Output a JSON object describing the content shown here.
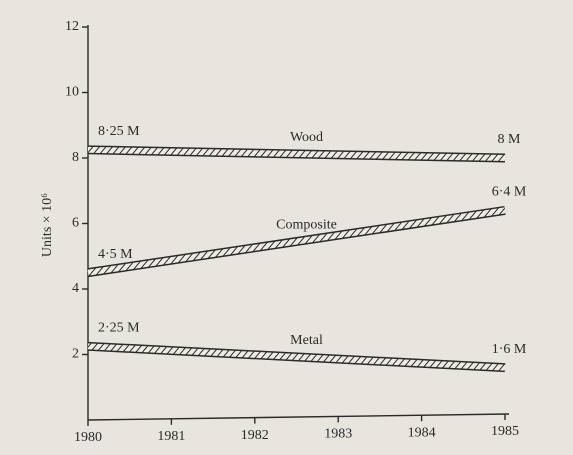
{
  "chart_data": {
    "type": "line",
    "y_label": "Units × 10⁶",
    "x": [
      1980,
      1985
    ],
    "xlim": [
      1980,
      1985
    ],
    "xticks": [
      1980,
      1981,
      1982,
      1983,
      1984,
      1985
    ],
    "ylim": [
      0,
      12
    ],
    "yticks": [
      2,
      4,
      6,
      8,
      10,
      12
    ],
    "series": [
      {
        "name": "Wood",
        "color": "#2b2b2b",
        "values": [
          8.25,
          8
        ],
        "value_labels": [
          "8·25 M",
          "8 M"
        ]
      },
      {
        "name": "Composite",
        "color": "#2b2b2b",
        "values": [
          4.5,
          6.4
        ],
        "value_labels": [
          "4·5 M",
          "6·4 M"
        ]
      },
      {
        "name": "Metal",
        "color": "#2b2b2b",
        "values": [
          2.25,
          1.6
        ],
        "value_labels": [
          "2·25 M",
          "1·6 M"
        ]
      }
    ]
  }
}
